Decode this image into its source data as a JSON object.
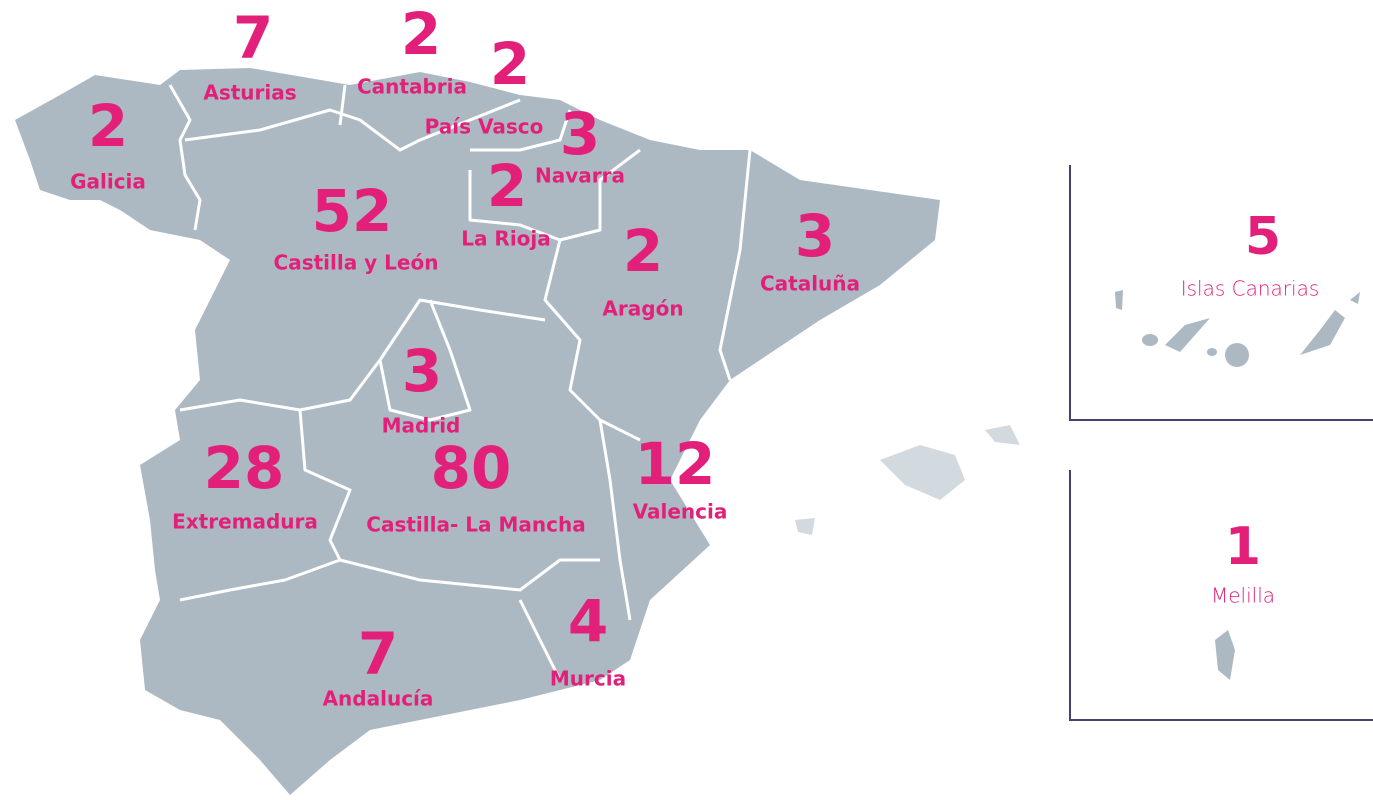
{
  "regions": [
    {
      "name": "Galicia",
      "value": 2
    },
    {
      "name": "Asturias",
      "value": 7
    },
    {
      "name": "Cantabria",
      "value": 2
    },
    {
      "name": "País Vasco",
      "value": 2
    },
    {
      "name": "Navarra",
      "value": 3
    },
    {
      "name": "La Rioja",
      "value": 2
    },
    {
      "name": "Castilla y León",
      "value": 52
    },
    {
      "name": "Aragón",
      "value": 2
    },
    {
      "name": "Cataluña",
      "value": 3
    },
    {
      "name": "Madrid",
      "value": 3
    },
    {
      "name": "Extremadura",
      "value": 28
    },
    {
      "name": "Castilla- La Mancha",
      "value": 80
    },
    {
      "name": "Valencia",
      "value": 12
    },
    {
      "name": "Murcia",
      "value": 4
    },
    {
      "name": "Andalucía",
      "value": 7
    }
  ],
  "insets": [
    {
      "name": "Islas Canarias",
      "value": 5
    },
    {
      "name": "Melilla",
      "value": 1
    }
  ]
}
